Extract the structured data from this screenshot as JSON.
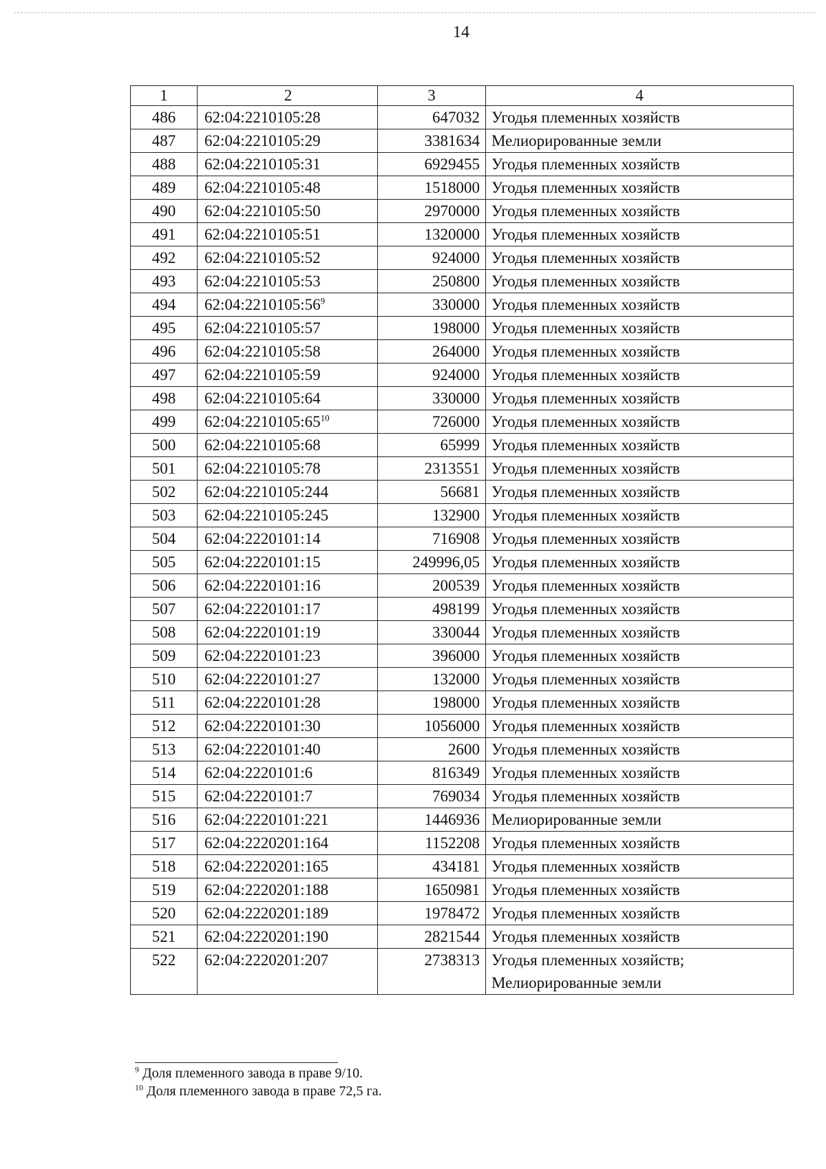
{
  "page_number": "14",
  "table": {
    "headers": [
      "1",
      "2",
      "3",
      "4"
    ],
    "rows": [
      {
        "n": "486",
        "cad": "62:04:2210105:28",
        "fn": "",
        "area": "647032",
        "type": "Угодья племенных хозяйств"
      },
      {
        "n": "487",
        "cad": "62:04:2210105:29",
        "fn": "",
        "area": "3381634",
        "type": "Мелиорированные земли"
      },
      {
        "n": "488",
        "cad": "62:04:2210105:31",
        "fn": "",
        "area": "6929455",
        "type": "Угодья племенных хозяйств"
      },
      {
        "n": "489",
        "cad": "62:04:2210105:48",
        "fn": "",
        "area": "1518000",
        "type": "Угодья племенных хозяйств"
      },
      {
        "n": "490",
        "cad": "62:04:2210105:50",
        "fn": "",
        "area": "2970000",
        "type": "Угодья племенных хозяйств"
      },
      {
        "n": "491",
        "cad": "62:04:2210105:51",
        "fn": "",
        "area": "1320000",
        "type": "Угодья племенных хозяйств"
      },
      {
        "n": "492",
        "cad": "62:04:2210105:52",
        "fn": "",
        "area": "924000",
        "type": "Угодья племенных хозяйств"
      },
      {
        "n": "493",
        "cad": "62:04:2210105:53",
        "fn": "",
        "area": "250800",
        "type": "Угодья племенных хозяйств"
      },
      {
        "n": "494",
        "cad": "62:04:2210105:56",
        "fn": "9",
        "area": "330000",
        "type": "Угодья племенных хозяйств"
      },
      {
        "n": "495",
        "cad": "62:04:2210105:57",
        "fn": "",
        "area": "198000",
        "type": "Угодья племенных хозяйств"
      },
      {
        "n": "496",
        "cad": "62:04:2210105:58",
        "fn": "",
        "area": "264000",
        "type": "Угодья племенных хозяйств"
      },
      {
        "n": "497",
        "cad": "62:04:2210105:59",
        "fn": "",
        "area": "924000",
        "type": "Угодья племенных хозяйств"
      },
      {
        "n": "498",
        "cad": "62:04:2210105:64",
        "fn": "",
        "area": "330000",
        "type": "Угодья племенных хозяйств"
      },
      {
        "n": "499",
        "cad": "62:04:2210105:65",
        "fn": "10",
        "area": "726000",
        "type": "Угодья племенных хозяйств"
      },
      {
        "n": "500",
        "cad": "62:04:2210105:68",
        "fn": "",
        "area": "65999",
        "type": "Угодья племенных хозяйств"
      },
      {
        "n": "501",
        "cad": "62:04:2210105:78",
        "fn": "",
        "area": "2313551",
        "type": "Угодья племенных хозяйств"
      },
      {
        "n": "502",
        "cad": "62:04:2210105:244",
        "fn": "",
        "area": "56681",
        "type": "Угодья племенных хозяйств"
      },
      {
        "n": "503",
        "cad": "62:04:2210105:245",
        "fn": "",
        "area": "132900",
        "type": "Угодья племенных хозяйств"
      },
      {
        "n": "504",
        "cad": "62:04:2220101:14",
        "fn": "",
        "area": "716908",
        "type": "Угодья племенных хозяйств"
      },
      {
        "n": "505",
        "cad": "62:04:2220101:15",
        "fn": "",
        "area": "249996,05",
        "type": "Угодья племенных хозяйств"
      },
      {
        "n": "506",
        "cad": "62:04:2220101:16",
        "fn": "",
        "area": "200539",
        "type": "Угодья племенных хозяйств"
      },
      {
        "n": "507",
        "cad": "62:04:2220101:17",
        "fn": "",
        "area": "498199",
        "type": "Угодья племенных хозяйств"
      },
      {
        "n": "508",
        "cad": "62:04:2220101:19",
        "fn": "",
        "area": "330044",
        "type": "Угодья племенных хозяйств"
      },
      {
        "n": "509",
        "cad": "62:04:2220101:23",
        "fn": "",
        "area": "396000",
        "type": "Угодья племенных хозяйств"
      },
      {
        "n": "510",
        "cad": "62:04:2220101:27",
        "fn": "",
        "area": "132000",
        "type": "Угодья племенных хозяйств"
      },
      {
        "n": "511",
        "cad": "62:04:2220101:28",
        "fn": "",
        "area": "198000",
        "type": "Угодья племенных хозяйств"
      },
      {
        "n": "512",
        "cad": "62:04:2220101:30",
        "fn": "",
        "area": "1056000",
        "type": "Угодья племенных хозяйств"
      },
      {
        "n": "513",
        "cad": "62:04:2220101:40",
        "fn": "",
        "area": "2600",
        "type": "Угодья племенных хозяйств"
      },
      {
        "n": "514",
        "cad": "62:04:2220101:6",
        "fn": "",
        "area": "816349",
        "type": "Угодья племенных хозяйств"
      },
      {
        "n": "515",
        "cad": "62:04:2220101:7",
        "fn": "",
        "area": "769034",
        "type": "Угодья племенных хозяйств"
      },
      {
        "n": "516",
        "cad": "62:04:2220101:221",
        "fn": "",
        "area": "1446936",
        "type": "Мелиорированные земли"
      },
      {
        "n": "517",
        "cad": "62:04:2220201:164",
        "fn": "",
        "area": "1152208",
        "type": "Угодья племенных хозяйств"
      },
      {
        "n": "518",
        "cad": "62:04:2220201:165",
        "fn": "",
        "area": "434181",
        "type": "Угодья племенных хозяйств"
      },
      {
        "n": "519",
        "cad": "62:04:2220201:188",
        "fn": "",
        "area": "1650981",
        "type": "Угодья племенных хозяйств"
      },
      {
        "n": "520",
        "cad": "62:04:2220201:189",
        "fn": "",
        "area": "1978472",
        "type": "Угодья племенных хозяйств"
      },
      {
        "n": "521",
        "cad": "62:04:2220201:190",
        "fn": "",
        "area": "2821544",
        "type": "Угодья племенных хозяйств"
      },
      {
        "n": "522",
        "cad": "62:04:2220201:207",
        "fn": "",
        "area": "2738313",
        "type": "Угодья племенных хозяйств;",
        "type2": "Мелиорированные земли"
      }
    ]
  },
  "footnotes": [
    {
      "mark": "9",
      "text": "Доля племенного завода в праве 9/10."
    },
    {
      "mark": "10",
      "text": "Доля племенного завода в праве 72,5 га."
    }
  ]
}
